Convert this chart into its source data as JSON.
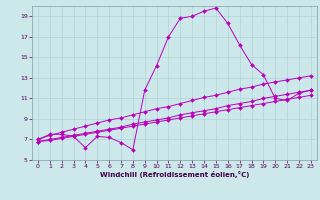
{
  "xlabel": "Windchill (Refroidissement éolien,°C)",
  "bg_color": "#cce8ea",
  "grid_color": "#b0d4d8",
  "line_color": "#bb00bb",
  "xlim": [
    -0.5,
    23.5
  ],
  "ylim": [
    5,
    20
  ],
  "yticks": [
    5,
    7,
    9,
    11,
    13,
    15,
    17,
    19
  ],
  "xticks": [
    0,
    1,
    2,
    3,
    4,
    5,
    6,
    7,
    8,
    9,
    10,
    11,
    12,
    13,
    14,
    15,
    16,
    17,
    18,
    19,
    20,
    21,
    22,
    23
  ],
  "series": {
    "line1": {
      "x": [
        0,
        1,
        2,
        3,
        4,
        5,
        6,
        7,
        8,
        9,
        10,
        11,
        12,
        13,
        14,
        15,
        16,
        17,
        18,
        19,
        20,
        21,
        22,
        23
      ],
      "y": [
        7.0,
        7.4,
        7.7,
        8.0,
        8.3,
        8.6,
        8.9,
        9.1,
        9.4,
        9.7,
        10.0,
        10.2,
        10.5,
        10.8,
        11.1,
        11.3,
        11.6,
        11.9,
        12.1,
        12.4,
        12.6,
        12.8,
        13.0,
        13.2
      ]
    },
    "line2": {
      "x": [
        0,
        1,
        2,
        3,
        4,
        5,
        6,
        7,
        8,
        9,
        10,
        11,
        12,
        13,
        14,
        15,
        16,
        17,
        18,
        19,
        20,
        21,
        22,
        23
      ],
      "y": [
        6.8,
        7.0,
        7.2,
        7.4,
        7.6,
        7.8,
        8.0,
        8.2,
        8.5,
        8.7,
        8.9,
        9.1,
        9.4,
        9.6,
        9.8,
        10.0,
        10.3,
        10.5,
        10.7,
        11.0,
        11.2,
        11.4,
        11.6,
        11.8
      ]
    },
    "line3": {
      "x": [
        0,
        1,
        2,
        3,
        4,
        5,
        6,
        7,
        8,
        9,
        10,
        11,
        12,
        13,
        14,
        15,
        16,
        17,
        18,
        19,
        20,
        21,
        22,
        23
      ],
      "y": [
        6.8,
        6.9,
        7.1,
        7.3,
        7.5,
        7.7,
        7.9,
        8.1,
        8.3,
        8.5,
        8.7,
        8.9,
        9.1,
        9.3,
        9.5,
        9.7,
        9.9,
        10.1,
        10.3,
        10.5,
        10.7,
        10.9,
        11.1,
        11.3
      ]
    },
    "line4": {
      "x": [
        0,
        1,
        2,
        3,
        4,
        5,
        6,
        7,
        8,
        9,
        10,
        11,
        12,
        13,
        14,
        15,
        16,
        17,
        18,
        19,
        20,
        21,
        22,
        23
      ],
      "y": [
        7.0,
        7.5,
        7.5,
        7.3,
        6.2,
        7.3,
        7.2,
        6.7,
        6.0,
        11.8,
        14.2,
        17.0,
        18.8,
        19.0,
        19.5,
        19.8,
        18.3,
        16.2,
        14.3,
        13.3,
        11.0,
        10.8,
        11.5,
        11.8
      ]
    }
  },
  "marker": "D",
  "marker_size": 2.0,
  "linewidth": 0.7,
  "tick_fontsize": 4.5,
  "xlabel_fontsize": 5.0
}
